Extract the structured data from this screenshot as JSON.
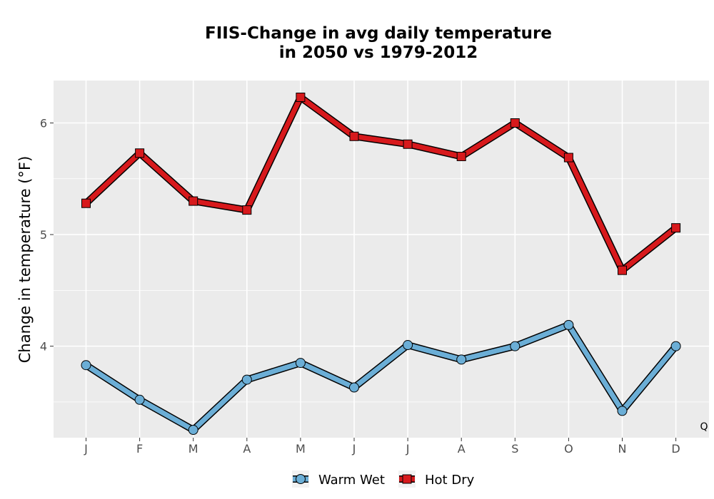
{
  "chart_data": {
    "type": "line",
    "title": [
      "FIIS-Change in avg daily temperature",
      "in 2050 vs 1979-2012"
    ],
    "xlabel": "",
    "ylabel": "Change in temperature (°F)",
    "categories": [
      "J",
      "F",
      "M",
      "A",
      "M",
      "J",
      "J",
      "A",
      "S",
      "O",
      "N",
      "D"
    ],
    "ylim": [
      3.18,
      6.38
    ],
    "yticks": [
      4,
      5,
      6
    ],
    "grid": true,
    "legend_position": "bottom",
    "corner_note": "Q",
    "series": [
      {
        "name": "Warm Wet",
        "color": "#6baed6",
        "marker": "circle",
        "values": [
          3.83,
          3.52,
          3.25,
          3.7,
          3.85,
          3.63,
          4.01,
          3.88,
          4.0,
          4.19,
          3.42,
          4.0
        ]
      },
      {
        "name": "Hot Dry",
        "color": "#d7191c",
        "marker": "square",
        "values": [
          5.28,
          5.73,
          5.3,
          5.22,
          6.23,
          5.88,
          5.81,
          5.7,
          6.0,
          5.69,
          4.68,
          5.06
        ]
      }
    ]
  }
}
